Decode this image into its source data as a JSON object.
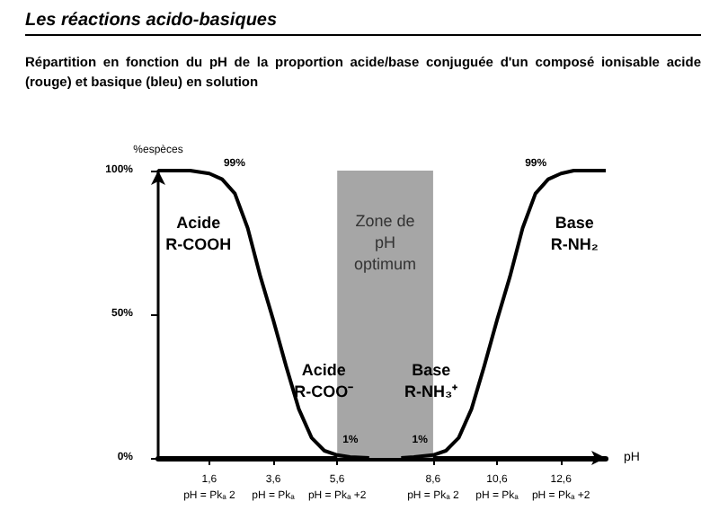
{
  "chart_data": {
    "type": "line",
    "title": "Les réactions acido-basiques",
    "subtitle": "Répartition en fonction du pH de la proportion acide/base conjuguée d'un composé ionisable acide (rouge) et basique (bleu) en solution",
    "xlabel": "pH",
    "ylabel": "%espèces",
    "series": [
      {
        "color": "#000000",
        "x": [
          0,
          1,
          1.6,
          2,
          2.4,
          2.8,
          3.2,
          3.6,
          4,
          4.4,
          4.8,
          5.2,
          5.6,
          6,
          6.6
        ],
        "values": [
          100,
          100,
          99,
          97,
          92,
          80,
          63,
          48,
          32,
          17,
          7,
          2.5,
          1,
          0.3,
          0
        ]
      },
      {
        "color": "#000000",
        "x": [
          7.6,
          8,
          8.6,
          9,
          9.4,
          9.8,
          10.2,
          10.6,
          11,
          11.4,
          11.8,
          12.2,
          12.6,
          13,
          14
        ],
        "values": [
          0,
          0.3,
          1,
          2.5,
          7,
          17,
          32,
          48,
          63,
          80,
          92,
          97,
          99,
          100,
          100
        ]
      }
    ],
    "xlim": [
      0,
      14
    ],
    "ylim": [
      0,
      100
    ],
    "xticks": [
      {
        "value": 1.6,
        "label": "1,6\npH = Pkₐ 2"
      },
      {
        "value": 3.6,
        "label": "3,6\npH = Pkₐ"
      },
      {
        "value": 5.6,
        "label": "5,6\npH = Pkₐ +2"
      },
      {
        "value": 8.6,
        "label": "8,6\npH = Pkₐ 2"
      },
      {
        "value": 10.6,
        "label": "10,6\npH = Pkₐ"
      },
      {
        "value": 12.6,
        "label": "12,6\npH = Pkₐ +2"
      }
    ],
    "yticks": [
      {
        "value": 0,
        "label": "0%"
      },
      {
        "value": 50,
        "label": "50%"
      },
      {
        "value": 100,
        "label": "100%"
      }
    ],
    "bands": [
      {
        "axis": "x",
        "from": 5.6,
        "to": 8.6,
        "label": "Zone de\npH\noptimum",
        "color": "#a6a6a6"
      }
    ],
    "annotations": [
      {
        "text": "99%",
        "x": 1.6,
        "y": 99
      },
      {
        "text": "1%",
        "x": 5.6,
        "y": 1
      },
      {
        "text": "1%",
        "x": 8.6,
        "y": 1
      },
      {
        "text": "99%",
        "x": 12.6,
        "y": 99
      },
      "Acide\nR-COOH",
      "Acide\nR-COO⁻",
      "Base\nR-NH₃⁺",
      "Base\nR-NH₂"
    ],
    "grid": false,
    "marker": "none",
    "line_style": "solid"
  }
}
